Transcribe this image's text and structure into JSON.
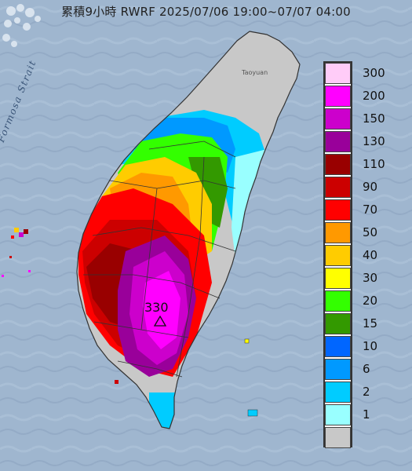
{
  "title": "累積9小時 RWRF 2025/07/06 19:00~07/07 04:00",
  "map_labels": {
    "strait": "Formosa Strait",
    "city": "Taoyuan"
  },
  "max_value": {
    "label": "330",
    "marker_icon": "triangle-marker-icon"
  },
  "legend": {
    "unit": "",
    "items": [
      {
        "label": "300",
        "color": "#ffccf8"
      },
      {
        "label": "200",
        "color": "#ff00ff"
      },
      {
        "label": "150",
        "color": "#cc00cc"
      },
      {
        "label": "130",
        "color": "#99009a"
      },
      {
        "label": "110",
        "color": "#990000"
      },
      {
        "label": "90",
        "color": "#cc0000"
      },
      {
        "label": "70",
        "color": "#ff0000"
      },
      {
        "label": "50",
        "color": "#ff9900"
      },
      {
        "label": "40",
        "color": "#ffcc00"
      },
      {
        "label": "30",
        "color": "#ffff00"
      },
      {
        "label": "20",
        "color": "#33ff00"
      },
      {
        "label": "15",
        "color": "#339900"
      },
      {
        "label": "10",
        "color": "#0066ff"
      },
      {
        "label": "6",
        "color": "#0099ff"
      },
      {
        "label": "2",
        "color": "#00ccff"
      },
      {
        "label": "1",
        "color": "#99ffff"
      },
      {
        "label": "",
        "color": "#c8c8c8"
      }
    ]
  },
  "colors": {
    "sea": "#9fb6cf",
    "land_dry": "#c8c8c8"
  }
}
